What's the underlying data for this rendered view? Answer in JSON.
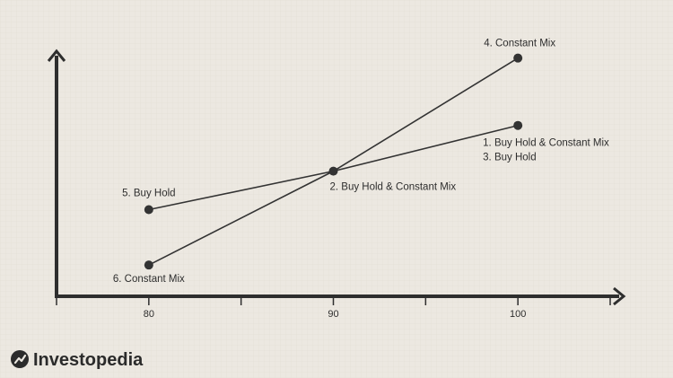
{
  "colors": {
    "background": "#ece8e1",
    "grid": "#e0dbd2",
    "axis": "#2e2e2e",
    "line": "#333333",
    "point": "#333333",
    "text": "#2e2e2e"
  },
  "brand": {
    "name": "Investopedia",
    "icon": "investopedia-logo-icon"
  },
  "chart_data": {
    "type": "line",
    "x_ticks": [
      80,
      90,
      100
    ],
    "x_tick_labels": [
      "80",
      "90",
      "100"
    ],
    "x_minor_ticks": [
      75,
      85,
      95,
      105
    ],
    "xlim": [
      75,
      105
    ],
    "ylim": [
      0,
      100
    ],
    "series": [
      {
        "points": [
          {
            "x": 80,
            "y": 36,
            "label": "5. Buy Hold"
          },
          {
            "x": 90,
            "y": 52,
            "label": "2. Buy Hold & Constant Mix"
          },
          {
            "x": 100,
            "y": 71,
            "label": "1. Buy Hold & Constant Mix",
            "label2": "3. Buy Hold"
          }
        ]
      },
      {
        "points": [
          {
            "x": 80,
            "y": 13,
            "label": "6. Constant Mix"
          },
          {
            "x": 90,
            "y": 52,
            "label": "2. Buy Hold & Constant Mix"
          },
          {
            "x": 100,
            "y": 99,
            "label": "4. Constant Mix"
          }
        ]
      }
    ]
  }
}
